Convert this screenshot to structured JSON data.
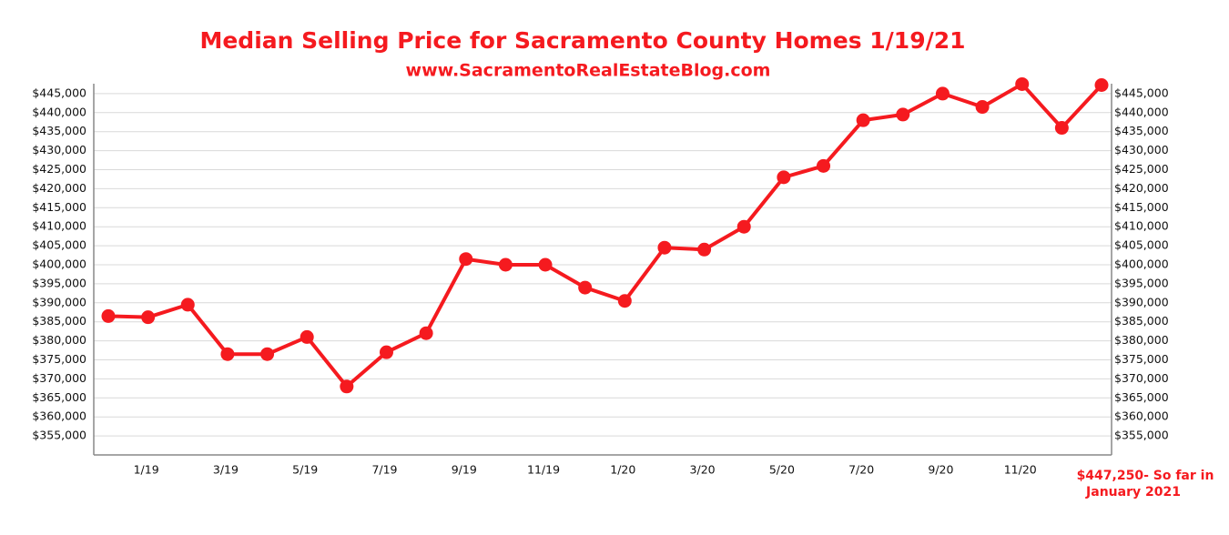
{
  "chart_data": {
    "type": "line",
    "title": "Median Selling Price for Sacramento County Homes 1/19/21",
    "subtitle": "www.SacramentoRealEstateBlog.com",
    "categories": [
      null,
      "1/19",
      null,
      "3/19",
      null,
      "5/19",
      null,
      "7/19",
      null,
      "9/19",
      null,
      "11/19",
      null,
      "1/20",
      null,
      "3/20",
      null,
      "5/20",
      null,
      "7/20",
      null,
      "9/20",
      null,
      "11/20",
      null,
      null
    ],
    "series": [
      {
        "name": "Median Selling Price",
        "color": "#f51a1f",
        "values": [
          386500,
          386200,
          389500,
          376500,
          376500,
          381000,
          368000,
          377000,
          382000,
          401500,
          400000,
          400000,
          394000,
          390500,
          404500,
          404000,
          410000,
          423000,
          426000,
          438000,
          439500,
          445000,
          441500,
          447500,
          436000,
          447250
        ]
      }
    ],
    "ylim": [
      350000,
      450000
    ],
    "yticks": [
      {
        "value": 355000,
        "label": "$355,000"
      },
      {
        "value": 360000,
        "label": "$360,000"
      },
      {
        "value": 365000,
        "label": "$365,000"
      },
      {
        "value": 370000,
        "label": "$370,000"
      },
      {
        "value": 375000,
        "label": "$375,000"
      },
      {
        "value": 380000,
        "label": "$380,000"
      },
      {
        "value": 385000,
        "label": "$385,000"
      },
      {
        "value": 390000,
        "label": "$390,000"
      },
      {
        "value": 395000,
        "label": "$395,000"
      },
      {
        "value": 400000,
        "label": "$400,000"
      },
      {
        "value": 405000,
        "label": "$405,000"
      },
      {
        "value": 410000,
        "label": "$410,000"
      },
      {
        "value": 415000,
        "label": "$415,000"
      },
      {
        "value": 420000,
        "label": "$420,000"
      },
      {
        "value": 425000,
        "label": "$425,000"
      },
      {
        "value": 430000,
        "label": "$430,000"
      },
      {
        "value": 435000,
        "label": "$435,000"
      },
      {
        "value": 440000,
        "label": "$440,000"
      },
      {
        "value": 445000,
        "label": "$445,000"
      }
    ],
    "y2lim": [
      350000,
      450000
    ],
    "y2ticks": [
      {
        "value": 355000,
        "label": "$355,000"
      },
      {
        "value": 360000,
        "label": "$360,000"
      },
      {
        "value": 365000,
        "label": "$365,000"
      },
      {
        "value": 370000,
        "label": "$370,000"
      },
      {
        "value": 375000,
        "label": "$375,000"
      },
      {
        "value": 380000,
        "label": "$380,000"
      },
      {
        "value": 385000,
        "label": "$385,000"
      },
      {
        "value": 390000,
        "label": "$390,000"
      },
      {
        "value": 395000,
        "label": "$395,000"
      },
      {
        "value": 400000,
        "label": "$400,000"
      },
      {
        "value": 405000,
        "label": "$405,000"
      },
      {
        "value": 410000,
        "label": "$410,000"
      },
      {
        "value": 415000,
        "label": "$415,000"
      },
      {
        "value": 420000,
        "label": "$420,000"
      },
      {
        "value": 425000,
        "label": "$425,000"
      },
      {
        "value": 430000,
        "label": "$430,000"
      },
      {
        "value": 435000,
        "label": "$435,000"
      },
      {
        "value": 440000,
        "label": "$440,000"
      },
      {
        "value": 445000,
        "label": "$445,000"
      }
    ],
    "grid": true,
    "annotation": [
      "$447,250- So far in",
      "January 2021"
    ]
  }
}
